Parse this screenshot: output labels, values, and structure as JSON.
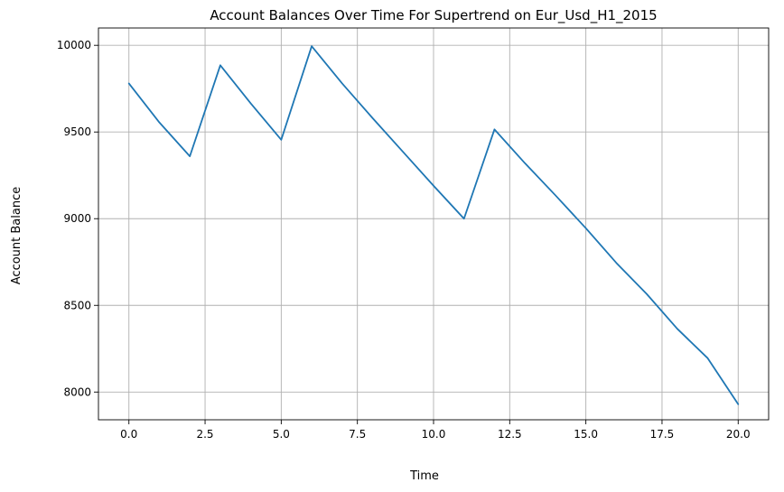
{
  "chart_data": {
    "type": "line",
    "title": "Account Balances Over Time For Supertrend on Eur_Usd_H1_2015",
    "xlabel": "Time",
    "ylabel": "Account Balance",
    "xlim": [
      -1.0,
      21.0
    ],
    "ylim": [
      7840,
      10100
    ],
    "xticks": [
      0.0,
      2.5,
      5.0,
      7.5,
      10.0,
      12.5,
      15.0,
      17.5,
      20.0
    ],
    "xtick_labels": [
      "0.0",
      "2.5",
      "5.0",
      "7.5",
      "10.0",
      "12.5",
      "15.0",
      "17.5",
      "20.0"
    ],
    "yticks": [
      8000,
      8500,
      9000,
      9500,
      10000
    ],
    "ytick_labels": [
      "8000",
      "8500",
      "9000",
      "9500",
      "10000"
    ],
    "grid": true,
    "series": [
      {
        "color": "#1f77b4",
        "x": [
          0,
          1,
          2,
          3,
          4,
          5,
          6,
          7,
          8,
          9,
          10,
          11,
          12,
          13,
          14,
          15,
          16,
          17,
          18,
          19,
          20
        ],
        "y": [
          9780,
          9555,
          9360,
          9885,
          9665,
          9455,
          9995,
          9780,
          9580,
          9385,
          9190,
          9000,
          9515,
          9320,
          9135,
          8945,
          8745,
          8565,
          8365,
          8195,
          7930
        ]
      }
    ]
  }
}
